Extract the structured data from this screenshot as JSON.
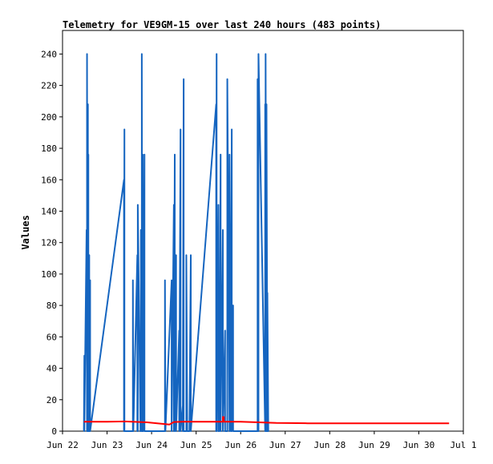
{
  "chart_data": {
    "type": "line",
    "title": "Telemetry for VE9GM-15 over last 240 hours (483 points)",
    "xlabel": "",
    "ylabel": "Values",
    "ylim": [
      0,
      255
    ],
    "yticks": [
      0,
      20,
      40,
      60,
      80,
      100,
      120,
      140,
      160,
      180,
      200,
      220,
      240
    ],
    "xlim": [
      "Jun 22",
      "Jul 1"
    ],
    "xticks": [
      "Jun 22",
      "Jun 23",
      "Jun 24",
      "Jun 25",
      "Jun 26",
      "Jun 27",
      "Jun 28",
      "Jun 29",
      "Jun 30",
      "Jul 1"
    ],
    "grid": false,
    "legend": "none",
    "series": [
      {
        "color": "#1565c0",
        "x": [
          22.48,
          22.49,
          22.49,
          22.54,
          22.55,
          22.55,
          22.56,
          22.57,
          22.57,
          22.58,
          22.58,
          22.59,
          22.59,
          22.6,
          22.6,
          22.62,
          22.62,
          23.38,
          23.38,
          23.39,
          23.39,
          23.58,
          23.58,
          23.59,
          23.59,
          23.68,
          23.68,
          23.69,
          23.69,
          23.75,
          23.75,
          23.76,
          23.76,
          23.78,
          23.78,
          23.79,
          23.79,
          23.8,
          23.8,
          23.81,
          23.81,
          23.84,
          23.84,
          24.3,
          24.3,
          24.31,
          24.31,
          24.45,
          24.45,
          24.5,
          24.5,
          24.52,
          24.52,
          24.55,
          24.55,
          24.62,
          24.62,
          24.65,
          24.65,
          24.7,
          24.7,
          24.72,
          24.72,
          24.78,
          24.78,
          24.8,
          24.8,
          24.83,
          24.83,
          24.85,
          24.85,
          24.88,
          24.88,
          25.45,
          25.45,
          25.46,
          25.46,
          25.5,
          25.5,
          25.52,
          25.52,
          25.55,
          25.55,
          25.6,
          25.6,
          25.65,
          25.65,
          25.7,
          25.7,
          25.75,
          25.75,
          25.78,
          25.78,
          25.8,
          25.8,
          25.83,
          25.83,
          25.87,
          25.87,
          25.9,
          25.9,
          26.38,
          26.38,
          26.4,
          26.4,
          26.55,
          26.55,
          26.56,
          26.56,
          26.58,
          26.58,
          26.6,
          26.6,
          26.62,
          26.62,
          26.63
        ],
        "y": [
          0,
          48,
          0,
          128,
          0,
          240,
          0,
          208,
          0,
          176,
          0,
          96,
          0,
          112,
          0,
          96,
          0,
          160,
          0,
          192,
          0,
          0,
          96,
          0,
          0,
          112,
          0,
          0,
          144,
          0,
          48,
          0,
          128,
          0,
          240,
          0,
          0,
          176,
          0,
          80,
          0,
          176,
          0,
          0,
          96,
          0,
          0,
          96,
          0,
          144,
          0,
          176,
          0,
          112,
          0,
          64,
          0,
          192,
          0,
          16,
          0,
          224,
          0,
          0,
          112,
          0,
          0,
          0,
          0,
          0,
          0,
          112,
          0,
          208,
          0,
          240,
          0,
          144,
          0,
          48,
          0,
          176,
          0,
          128,
          0,
          64,
          0,
          0,
          224,
          0,
          176,
          0,
          0,
          192,
          0,
          80,
          0,
          0,
          0,
          0,
          0,
          0,
          224,
          0,
          240,
          0,
          208,
          0,
          240,
          0,
          208,
          0,
          88,
          0,
          0,
          0
        ]
      },
      {
        "color": "#ff0000",
        "x": [
          22.48,
          23.0,
          23.4,
          23.9,
          24.4,
          24.5,
          24.7,
          25.0,
          25.6,
          25.6,
          25.62,
          25.62,
          26.0,
          26.8,
          27.5,
          28.5,
          29.5,
          30.5,
          30.68
        ],
        "y": [
          6,
          6,
          6.2,
          5.6,
          4.2,
          5.8,
          6,
          6,
          6,
          9,
          9,
          6,
          6,
          5.2,
          5,
          5,
          5,
          5,
          5
        ]
      }
    ]
  }
}
